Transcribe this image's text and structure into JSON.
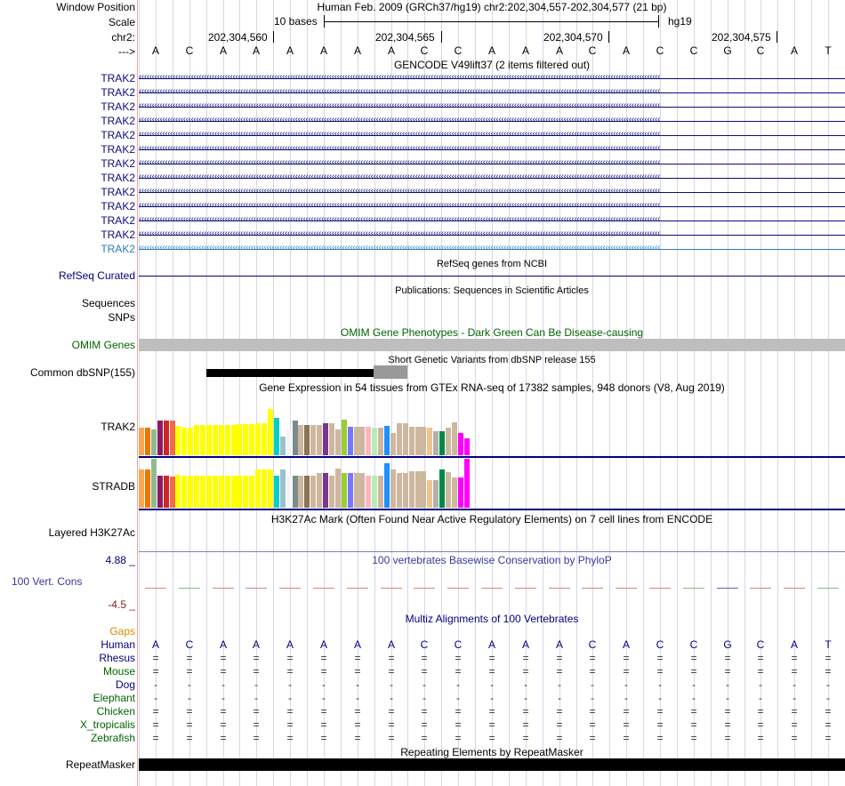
{
  "header": {
    "window_position_label": "Window Position",
    "scale_label": "Scale",
    "chrom_label": "chr2:",
    "arrow_label": "--->",
    "assembly_text": "Human Feb. 2009 (GRCh37/hg19)   chr2:202,304,557-202,304,577 (21 bp)",
    "scale_text": "10 bases",
    "db_text": "hg19",
    "ruler_positions": [
      "202,304,560",
      "202,304,565",
      "202,304,570",
      "202,304,575"
    ]
  },
  "sequence": [
    "A",
    "C",
    "A",
    "A",
    "A",
    "A",
    "A",
    "A",
    "C",
    "C",
    "A",
    "A",
    "A",
    "C",
    "A",
    "C",
    "C",
    "G",
    "C",
    "A",
    "T"
  ],
  "gencode": {
    "title": "GENCODE V49lift37 (2 items filtered out)",
    "items": [
      "TRAK2",
      "TRAK2",
      "TRAK2",
      "TRAK2",
      "TRAK2",
      "TRAK2",
      "TRAK2",
      "TRAK2",
      "TRAK2",
      "TRAK2",
      "TRAK2",
      "TRAK2",
      "TRAK2"
    ],
    "colors": [
      "#0c0c78",
      "#0c0c78",
      "#0c0c78",
      "#0c0c78",
      "#0c0c78",
      "#0c0c78",
      "#0c0c78",
      "#0c0c78",
      "#0c0c78",
      "#0c0c78",
      "#0c0c78",
      "#0c0c78",
      "#2b7bbd"
    ]
  },
  "refseq": {
    "title": "RefSeq genes from NCBI",
    "label": "RefSeq Curated"
  },
  "pubs": {
    "title": "Publications: Sequences in Scientific Articles",
    "label_sequences": "Sequences",
    "label_snps": "SNPs"
  },
  "omim": {
    "title": "OMIM Gene Phenotypes - Dark Green Can Be Disease-causing",
    "label": "OMIM Genes"
  },
  "dbsnp": {
    "title": "Short Genetic Variants from dbSNP release 155",
    "label": "Common dbSNP(155)"
  },
  "gtex": {
    "title": "Gene Expression in 54 tissues from GTEx RNA-seq of 17382 samples, 948 donors (V8, Aug 2019)",
    "genes": [
      {
        "name": "TRAK2",
        "values": [
          0.47,
          0.47,
          0.44,
          0.58,
          0.58,
          0.58,
          0.49,
          0.47,
          0.47,
          0.5,
          0.5,
          0.5,
          0.5,
          0.5,
          0.5,
          0.5,
          0.52,
          0.52,
          0.52,
          0.54,
          0.54,
          0.78,
          0.63,
          0.31,
          0.44,
          0.58,
          0.5,
          0.5,
          0.5,
          0.5,
          0.54,
          0.54,
          0.43,
          0.59,
          0.48,
          0.48,
          0.48,
          0.48,
          0.46,
          0.46,
          0.49,
          0.38,
          0.53,
          0.53,
          0.48,
          0.48,
          0.48,
          0.46,
          0.4,
          0.4,
          0.46,
          0.55,
          0.38,
          0.28
        ]
      },
      {
        "name": "STRADB",
        "values": [
          0.78,
          0.78,
          1.0,
          0.66,
          0.66,
          0.63,
          0.68,
          0.66,
          0.66,
          0.66,
          0.66,
          0.66,
          0.66,
          0.66,
          0.66,
          0.66,
          0.66,
          0.66,
          0.66,
          0.78,
          0.78,
          0.78,
          0.66,
          0.78,
          0.66,
          0.66,
          0.66,
          0.66,
          0.66,
          0.7,
          0.7,
          0.66,
          0.8,
          0.7,
          0.7,
          0.7,
          0.7,
          0.66,
          0.66,
          0.66,
          0.9,
          0.78,
          0.7,
          0.7,
          0.74,
          0.74,
          0.74,
          0.56,
          0.56,
          0.78,
          0.72,
          0.62,
          0.62,
          1.0
        ]
      }
    ],
    "colors": [
      "#ffa54f",
      "#ee7600",
      "#8fbc8f",
      "#8b1c62",
      "#cd2626",
      "#ee6a50",
      "#ffff00",
      "#ffff00",
      "#ffff00",
      "#ffff00",
      "#ffff00",
      "#ffff00",
      "#ffff00",
      "#ffff00",
      "#ffff00",
      "#ffff00",
      "#ffff00",
      "#ffff00",
      "#ffff00",
      "#ffff00",
      "#ffff00",
      "#ffff00",
      "#00cdcd",
      "#9ac0cd",
      "#ffffff",
      "#7a8b8b",
      "#cdb79e",
      "#8b7355",
      "#cdb79e",
      "#cdb79e",
      "#7a378b",
      "#cdb79e",
      "#cdb79e",
      "#9acd32",
      "#7777ff",
      "#cdb79e",
      "#cdb79e",
      "#ffb6c1",
      "#b4eeb4",
      "#cdb79e",
      "#1e90ff",
      "#cdb79e",
      "#cdb79e",
      "#cdb79e",
      "#cdb79e",
      "#cdb79e",
      "#cdb79e",
      "#eec591",
      "#b0b0b0",
      "#008b45",
      "#cdb79e",
      "#cdb79e",
      "#ff00ff",
      "#ff00ff"
    ]
  },
  "h3k27ac": {
    "title": "H3K27Ac Mark (Often Found Near Active Regulatory Elements) on 7 cell lines from ENCODE",
    "label": "Layered H3K27Ac"
  },
  "phylop": {
    "title": "100 vertebrates Basewise Conservation by PhyloP",
    "label": "100 Vert. Cons",
    "max_label": "4.88 _",
    "min_label": "-4.5 _"
  },
  "multiz": {
    "title": "Multiz Alignments of 100 Vertebrates",
    "gaps_label": "Gaps",
    "species": [
      {
        "name": "Human",
        "color": "#000080",
        "row": [
          "A",
          "C",
          "A",
          "A",
          "A",
          "A",
          "A",
          "A",
          "C",
          "C",
          "A",
          "A",
          "A",
          "C",
          "A",
          "C",
          "C",
          "G",
          "C",
          "A",
          "T"
        ]
      },
      {
        "name": "Rhesus",
        "color": "#000080",
        "row": [
          "=",
          "=",
          "=",
          "=",
          "=",
          "=",
          "=",
          "=",
          "=",
          "=",
          "=",
          "=",
          "=",
          "=",
          "=",
          "=",
          "=",
          "=",
          "=",
          "=",
          "="
        ]
      },
      {
        "name": "Mouse",
        "color": "#006400",
        "row": [
          "=",
          "=",
          "=",
          "=",
          "=",
          "=",
          "=",
          "=",
          "=",
          "=",
          "=",
          "=",
          "=",
          "=",
          "=",
          "=",
          "=",
          "=",
          "=",
          "=",
          "="
        ]
      },
      {
        "name": "Dog",
        "color": "#000080",
        "row": [
          "-",
          "-",
          "-",
          "-",
          "-",
          "-",
          "-",
          "-",
          "-",
          "-",
          "-",
          "-",
          "-",
          "-",
          "-",
          "-",
          "-",
          "-",
          "-",
          "-",
          "-"
        ]
      },
      {
        "name": "Elephant",
        "color": "#006400",
        "row": [
          "-",
          "-",
          "-",
          "-",
          "-",
          "-",
          "-",
          "-",
          "-",
          "-",
          "-",
          "-",
          "-",
          "-",
          "-",
          "-",
          "-",
          "-",
          "-",
          "-",
          "-"
        ]
      },
      {
        "name": "Chicken",
        "color": "#006400",
        "row": [
          "=",
          "=",
          "=",
          "=",
          "=",
          "=",
          "=",
          "=",
          "=",
          "=",
          "=",
          "=",
          "=",
          "=",
          "=",
          "=",
          "=",
          "=",
          "=",
          "=",
          "="
        ]
      },
      {
        "name": "X_tropicalis",
        "color": "#006400",
        "row": [
          "=",
          "=",
          "=",
          "=",
          "=",
          "=",
          "=",
          "=",
          "=",
          "=",
          "=",
          "=",
          "=",
          "=",
          "=",
          "=",
          "=",
          "=",
          "=",
          "=",
          "="
        ]
      },
      {
        "name": "Zebrafish",
        "color": "#006400",
        "row": [
          "=",
          "=",
          "=",
          "=",
          "=",
          "=",
          "=",
          "=",
          "=",
          "=",
          "=",
          "=",
          "=",
          "=",
          "=",
          "=",
          "=",
          "=",
          "=",
          "=",
          "="
        ]
      }
    ]
  },
  "repeatmasker": {
    "title": "Repeating Elements by RepeatMasker",
    "label": "RepeatMasker"
  }
}
